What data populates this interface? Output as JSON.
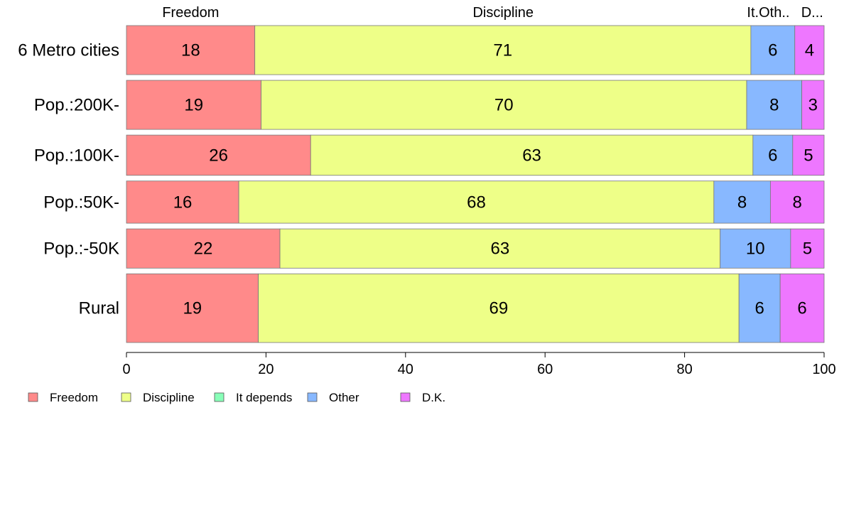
{
  "colors": {
    "Freedom": "#FF8A8A",
    "Discipline": "#EEFF88",
    "It depends": "#88FFB8",
    "Other": "#88B8FF",
    "D.K.": "#EE77FF"
  },
  "chart_data": {
    "type": "bar",
    "orientation": "horizontal",
    "stacked": true,
    "categories": [
      "6 Metro cities",
      "Pop.:200K-",
      "Pop.:100K-",
      "Pop.:50K-",
      "Pop.:-50K",
      "Rural"
    ],
    "bar_weights": [
      1.0,
      1.0,
      0.82,
      0.86,
      0.8,
      1.4
    ],
    "series": [
      {
        "name": "Freedom",
        "values": [
          18.4,
          19.3,
          26.4,
          16.1,
          22.0,
          18.9
        ],
        "labels": [
          "18",
          "19",
          "26",
          "16",
          "22",
          "19"
        ]
      },
      {
        "name": "Discipline",
        "values": [
          71.1,
          69.6,
          63.4,
          68.1,
          63.1,
          68.9
        ],
        "labels": [
          "71",
          "70",
          "63",
          "68",
          "63",
          "69"
        ]
      },
      {
        "name": "It depends",
        "values": [
          0,
          0,
          0,
          0,
          0,
          0
        ],
        "labels": [
          "",
          "",
          "",
          "",
          "",
          ""
        ]
      },
      {
        "name": "Other",
        "values": [
          6.3,
          7.9,
          5.7,
          8.1,
          10.1,
          5.9
        ],
        "labels": [
          "6",
          "8",
          "6",
          "8",
          "10",
          "6"
        ]
      },
      {
        "name": "D.K.",
        "values": [
          4.2,
          3.2,
          4.5,
          7.7,
          4.8,
          6.3
        ],
        "labels": [
          "4",
          "3",
          "5",
          "8",
          "5",
          "6"
        ]
      }
    ],
    "top_labels": [
      {
        "text": "Freedom",
        "at": 9.2
      },
      {
        "text": "Discipline",
        "at": 54
      },
      {
        "text": "It.Oth..",
        "at": 92
      },
      {
        "text": "D...",
        "at": 98.3
      }
    ],
    "xlim": [
      0,
      100
    ],
    "xticks": [
      0,
      20,
      40,
      60,
      80,
      100
    ],
    "legend": [
      "Freedom",
      "Discipline",
      "It depends",
      "Other",
      "D.K."
    ],
    "legend_position": "bottom-left",
    "grid": false
  }
}
